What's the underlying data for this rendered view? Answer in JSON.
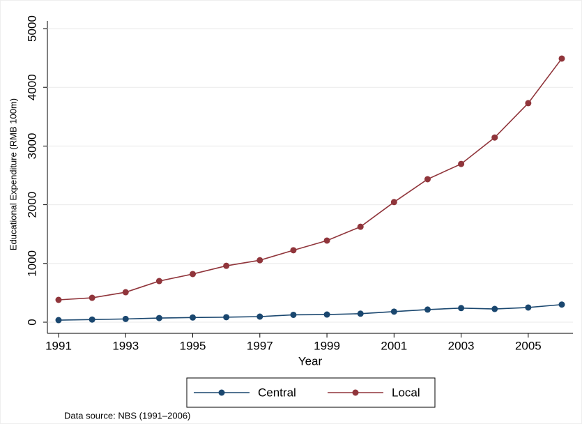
{
  "chart_data": {
    "type": "line",
    "x": [
      1991,
      1992,
      1993,
      1994,
      1995,
      1996,
      1997,
      1998,
      1999,
      2000,
      2001,
      2002,
      2003,
      2004,
      2005,
      2006
    ],
    "series": [
      {
        "name": "Central",
        "color": "#1a476f",
        "values": [
          35,
          45,
          55,
          70,
          80,
          85,
          95,
          125,
          130,
          145,
          180,
          215,
          240,
          225,
          250,
          300
        ]
      },
      {
        "name": "Local",
        "color": "#90353b",
        "values": [
          380,
          415,
          510,
          700,
          820,
          960,
          1055,
          1225,
          1390,
          1625,
          2045,
          2435,
          2695,
          3145,
          3730,
          4490
        ]
      }
    ],
    "xlabel": "Year",
    "ylabel": "Educational Expenditure (RMB 100m)",
    "xlim": [
      1991,
      2006
    ],
    "xticks": [
      1991,
      1993,
      1995,
      1997,
      1999,
      2001,
      2003,
      2005
    ],
    "ylim": [
      0,
      5000
    ],
    "yticks": [
      0,
      1000,
      2000,
      3000,
      4000,
      5000
    ],
    "grid": true,
    "legend": "bottom",
    "note": "Data source: NBS (1991–2006)"
  }
}
